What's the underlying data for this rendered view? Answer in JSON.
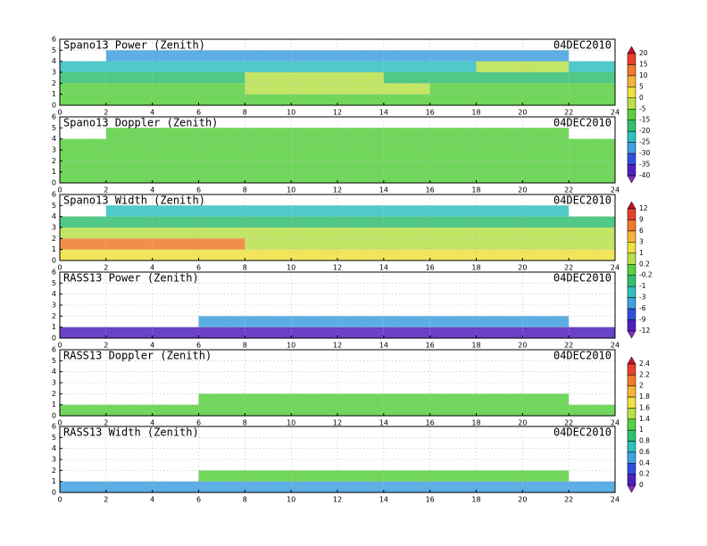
{
  "chart_data": [
    {
      "type": "heatmap",
      "title": "Spano13 Power (Zenith)",
      "date": "04DEC2010",
      "x": [
        0,
        2,
        4,
        6,
        8,
        10,
        12,
        14,
        16,
        18,
        20,
        22,
        24
      ],
      "y": [
        0,
        1,
        2,
        3,
        4,
        5,
        6
      ],
      "values": [
        [
          -12,
          -12,
          -12,
          -12,
          -12,
          -12,
          -12,
          -12,
          -12,
          -12,
          -12,
          -12
        ],
        [
          -8,
          -8,
          -8,
          -8,
          -2,
          -2,
          -2,
          -2,
          -8,
          -8,
          -8,
          -8
        ],
        [
          -18,
          -18,
          -18,
          -18,
          -4,
          -4,
          -4,
          -18,
          -18,
          -18,
          -18,
          -18
        ],
        [
          -22,
          -22,
          -22,
          -22,
          -22,
          -22,
          -22,
          -22,
          -22,
          -5,
          -5,
          -22
        ],
        [
          null,
          -30,
          -30,
          -30,
          -30,
          -30,
          -30,
          -30,
          -30,
          -30,
          -30,
          null
        ],
        [
          null,
          null,
          null,
          null,
          null,
          null,
          null,
          null,
          null,
          null,
          null,
          null
        ]
      ],
      "xlim": [
        0,
        24
      ],
      "ylim": [
        0,
        6
      ],
      "xticks": [
        0,
        2,
        4,
        6,
        8,
        10,
        12,
        14,
        16,
        18,
        20,
        22,
        24
      ],
      "yticks": [
        0,
        1,
        2,
        3,
        4,
        5,
        6
      ],
      "colorbar": {
        "levels": [
          20,
          15,
          10,
          5,
          0,
          -5,
          -15,
          -20,
          -25,
          -30,
          -35,
          -40
        ],
        "colors": [
          "#c8102e",
          "#e8402a",
          "#f07a2a",
          "#f5b53a",
          "#f0e040",
          "#b8e04a",
          "#58d040",
          "#30c070",
          "#30c0c0",
          "#40a0e0",
          "#3050e0",
          "#5020c0",
          "#8030c0"
        ]
      }
    },
    {
      "type": "heatmap",
      "title": "Spano13 Doppler (Zenith)",
      "date": "04DEC2010",
      "x": [
        0,
        2,
        4,
        6,
        8,
        10,
        12,
        14,
        16,
        18,
        20,
        22,
        24
      ],
      "y": [
        0,
        1,
        2,
        3,
        4,
        5,
        6
      ],
      "values": [
        [
          -12,
          -12,
          -12,
          -12,
          -12,
          -12,
          -12,
          -12,
          -12,
          -12,
          -12,
          -12
        ],
        [
          -12,
          -12,
          -12,
          -12,
          -12,
          -12,
          -12,
          -12,
          -12,
          -12,
          -12,
          -12
        ],
        [
          -12,
          -12,
          -12,
          -12,
          -12,
          -12,
          -12,
          -12,
          -12,
          -12,
          -12,
          -12
        ],
        [
          -14,
          -14,
          -14,
          -14,
          -14,
          -14,
          -14,
          -14,
          -14,
          -14,
          -14,
          -14
        ],
        [
          null,
          -14,
          -14,
          -14,
          -14,
          -14,
          -14,
          -14,
          -14,
          -14,
          -14,
          null
        ],
        [
          null,
          null,
          null,
          null,
          null,
          null,
          null,
          null,
          null,
          null,
          null,
          null
        ]
      ],
      "xlim": [
        0,
        24
      ],
      "ylim": [
        0,
        6
      ],
      "xticks": [
        0,
        2,
        4,
        6,
        8,
        10,
        12,
        14,
        16,
        18,
        20,
        22,
        24
      ],
      "yticks": [
        0,
        1,
        2,
        3,
        4,
        5,
        6
      ]
    },
    {
      "type": "heatmap",
      "title": "Spano13 Width (Zenith)",
      "date": "04DEC2010",
      "x": [
        0,
        2,
        4,
        6,
        8,
        10,
        12,
        14,
        16,
        18,
        20,
        22,
        24
      ],
      "y": [
        0,
        1,
        2,
        3,
        4,
        5,
        6
      ],
      "values": [
        [
          1,
          1,
          1,
          1,
          1,
          1,
          1,
          1,
          1,
          1,
          1,
          1
        ],
        [
          7,
          7,
          7,
          7,
          0.5,
          0.5,
          0.5,
          0.5,
          0.5,
          0.5,
          0.5,
          0.5
        ],
        [
          0.5,
          0.5,
          0.5,
          0.5,
          0.5,
          0.5,
          0.5,
          0.5,
          0.5,
          0.5,
          0.5,
          0.5
        ],
        [
          -1,
          -1,
          -1,
          -1,
          -1,
          -1,
          -1,
          -1,
          -1,
          -1,
          -1,
          -1
        ],
        [
          null,
          -3,
          -3,
          -3,
          -3,
          -3,
          -3,
          -3,
          -3,
          -3,
          -3,
          null
        ],
        [
          null,
          null,
          null,
          null,
          null,
          null,
          null,
          null,
          null,
          null,
          null,
          null
        ]
      ],
      "xlim": [
        0,
        24
      ],
      "ylim": [
        0,
        6
      ],
      "xticks": [
        0,
        2,
        4,
        6,
        8,
        10,
        12,
        14,
        16,
        18,
        20,
        22,
        24
      ],
      "yticks": [
        0,
        1,
        2,
        3,
        4,
        5,
        6
      ],
      "colorbar": {
        "levels": [
          12,
          9,
          6,
          3,
          1,
          0.2,
          -0.2,
          -1,
          -3,
          -6,
          -9,
          -12
        ],
        "colors": [
          "#c8102e",
          "#e8402a",
          "#f07a2a",
          "#f5b53a",
          "#f0e040",
          "#b8e04a",
          "#58d040",
          "#30c070",
          "#30c0c0",
          "#40a0e0",
          "#3050e0",
          "#5020c0",
          "#8030c0"
        ]
      }
    },
    {
      "type": "heatmap",
      "title": "RASS13 Power (Zenith)",
      "date": "04DEC2010",
      "x": [
        0,
        2,
        4,
        6,
        8,
        10,
        12,
        14,
        16,
        18,
        20,
        22,
        24
      ],
      "y": [
        0,
        1,
        2,
        3,
        4,
        5,
        6
      ],
      "values": [
        [
          -10,
          -10,
          -10,
          -10,
          -10,
          -10,
          -10,
          -10,
          -10,
          -10,
          -10,
          -10
        ],
        [
          null,
          null,
          null,
          -4,
          -4,
          -4,
          -4,
          -4,
          -4,
          -4,
          -4,
          null
        ],
        [
          null,
          null,
          null,
          null,
          null,
          null,
          null,
          null,
          null,
          null,
          null,
          null
        ],
        [
          null,
          null,
          null,
          null,
          null,
          null,
          null,
          null,
          null,
          null,
          null,
          null
        ],
        [
          null,
          null,
          null,
          null,
          null,
          null,
          null,
          null,
          null,
          null,
          null,
          null
        ],
        [
          null,
          null,
          null,
          null,
          null,
          null,
          null,
          null,
          null,
          null,
          null,
          null
        ]
      ],
      "xlim": [
        0,
        24
      ],
      "ylim": [
        0,
        6
      ],
      "xticks": [
        0,
        2,
        4,
        6,
        8,
        10,
        12,
        14,
        16,
        18,
        20,
        22,
        24
      ],
      "yticks": [
        0,
        1,
        2,
        3,
        4,
        5,
        6
      ]
    },
    {
      "type": "heatmap",
      "title": "RASS13 Doppler (Zenith)",
      "date": "04DEC2010",
      "x": [
        0,
        2,
        4,
        6,
        8,
        10,
        12,
        14,
        16,
        18,
        20,
        22,
        24
      ],
      "y": [
        0,
        1,
        2,
        3,
        4,
        5,
        6
      ],
      "values": [
        [
          1,
          1,
          1,
          1,
          1,
          1,
          1,
          1,
          1,
          1,
          1,
          1
        ],
        [
          null,
          null,
          null,
          1.1,
          1.1,
          1.1,
          1.1,
          1.1,
          1.1,
          1.1,
          1.1,
          null
        ],
        [
          null,
          null,
          null,
          null,
          null,
          null,
          null,
          null,
          null,
          null,
          null,
          null
        ],
        [
          null,
          null,
          null,
          null,
          null,
          null,
          null,
          null,
          null,
          null,
          null,
          null
        ],
        [
          null,
          null,
          null,
          null,
          null,
          null,
          null,
          null,
          null,
          null,
          null,
          null
        ],
        [
          null,
          null,
          null,
          null,
          null,
          null,
          null,
          null,
          null,
          null,
          null,
          null
        ]
      ],
      "xlim": [
        0,
        24
      ],
      "ylim": [
        0,
        6
      ],
      "xticks": [
        0,
        2,
        4,
        6,
        8,
        10,
        12,
        14,
        16,
        18,
        20,
        22,
        24
      ],
      "yticks": [
        0,
        1,
        2,
        3,
        4,
        5,
        6
      ],
      "colorbar": {
        "levels": [
          2.4,
          2.2,
          2,
          1.8,
          1.6,
          1.4,
          1,
          0.8,
          0.6,
          0.4,
          0.2,
          0
        ],
        "colors": [
          "#c8102e",
          "#e8402a",
          "#f07a2a",
          "#f5b53a",
          "#f0e040",
          "#b8e04a",
          "#58d040",
          "#30c070",
          "#30c0c0",
          "#40a0e0",
          "#3050e0",
          "#5020c0",
          "#8030c0"
        ]
      }
    },
    {
      "type": "heatmap",
      "title": "RASS13 Width (Zenith)",
      "date": "04DEC2010",
      "x": [
        0,
        2,
        4,
        6,
        8,
        10,
        12,
        14,
        16,
        18,
        20,
        22,
        24
      ],
      "y": [
        0,
        1,
        2,
        3,
        4,
        5,
        6
      ],
      "values": [
        [
          0.5,
          0.5,
          0.5,
          0.5,
          0.5,
          0.5,
          0.5,
          0.5,
          0.5,
          0.5,
          0.5,
          0.5
        ],
        [
          null,
          null,
          null,
          1.1,
          1.1,
          1.1,
          1.1,
          1.1,
          1.1,
          1.1,
          1.1,
          null
        ],
        [
          null,
          null,
          null,
          null,
          null,
          null,
          null,
          null,
          null,
          null,
          null,
          null
        ],
        [
          null,
          null,
          null,
          null,
          null,
          null,
          null,
          null,
          null,
          null,
          null,
          null
        ],
        [
          null,
          null,
          null,
          null,
          null,
          null,
          null,
          null,
          null,
          null,
          null,
          null
        ],
        [
          null,
          null,
          null,
          null,
          null,
          null,
          null,
          null,
          null,
          null,
          null,
          null
        ]
      ],
      "xlim": [
        0,
        24
      ],
      "ylim": [
        0,
        6
      ],
      "xticks": [
        0,
        2,
        4,
        6,
        8,
        10,
        12,
        14,
        16,
        18,
        20,
        22,
        24
      ],
      "yticks": [
        0,
        1,
        2,
        3,
        4,
        5,
        6
      ]
    }
  ]
}
